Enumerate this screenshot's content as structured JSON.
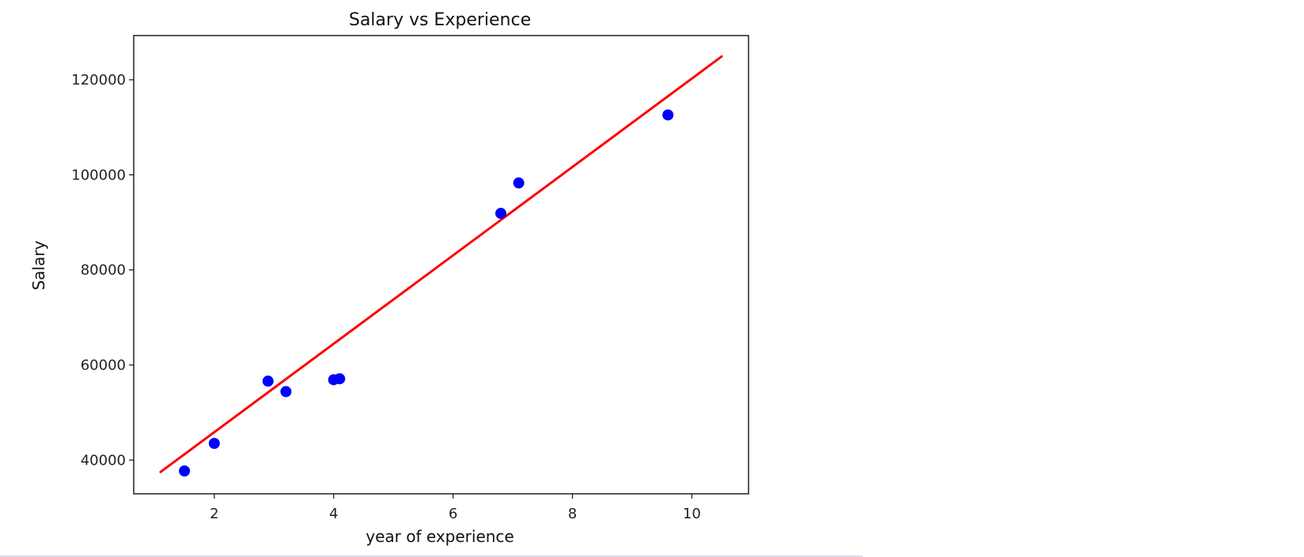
{
  "chart_data": {
    "type": "scatter",
    "title": "Salary vs Experience",
    "xlabel": "year of experience",
    "ylabel": "Salary",
    "xlim": [
      0.65,
      10.95
    ],
    "ylim": [
      32900,
      129300
    ],
    "xticks": [
      2,
      4,
      6,
      8,
      10
    ],
    "yticks": [
      40000,
      60000,
      80000,
      100000,
      120000
    ],
    "grid": false,
    "series": [
      {
        "kind": "scatter",
        "color": "#0000ff",
        "points": [
          {
            "x": 1.5,
            "y": 37700
          },
          {
            "x": 2.0,
            "y": 43500
          },
          {
            "x": 2.9,
            "y": 56600
          },
          {
            "x": 3.2,
            "y": 54400
          },
          {
            "x": 4.0,
            "y": 56900
          },
          {
            "x": 4.1,
            "y": 57100
          },
          {
            "x": 6.8,
            "y": 91900
          },
          {
            "x": 7.1,
            "y": 98300
          },
          {
            "x": 9.6,
            "y": 112600
          }
        ]
      },
      {
        "kind": "line",
        "color": "#ff0000",
        "points": [
          {
            "x": 1.1,
            "y": 37500
          },
          {
            "x": 10.5,
            "y": 124900
          }
        ]
      }
    ]
  }
}
